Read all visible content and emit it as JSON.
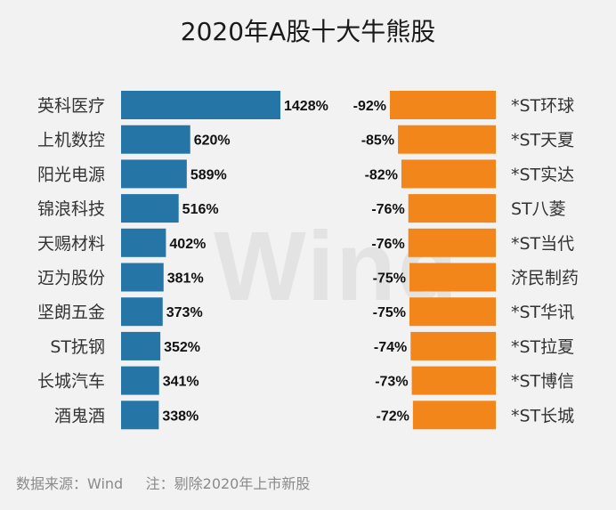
{
  "chart_data": {
    "type": "bar",
    "title": "2020年A股十大牛熊股",
    "colors": {
      "gainers": "#2576a7",
      "losers": "#f3861a"
    },
    "gainers": {
      "categories": [
        "英科医疗",
        "上机数控",
        "阳光电源",
        "锦浪科技",
        "天赐材料",
        "迈为股份",
        "坚朗五金",
        "ST抚钢",
        "长城汽车",
        "酒鬼酒"
      ],
      "values": [
        1428,
        620,
        589,
        516,
        402,
        381,
        373,
        352,
        341,
        338
      ],
      "labels": [
        "1428%",
        "620%",
        "589%",
        "516%",
        "402%",
        "381%",
        "373%",
        "352%",
        "341%",
        "338%"
      ]
    },
    "losers": {
      "categories": [
        "*ST环球",
        "*ST天夏",
        "*ST实达",
        "ST八菱",
        "*ST当代",
        "济民制药",
        "*ST华讯",
        "*ST拉夏",
        "*ST博信",
        "*ST长城"
      ],
      "values": [
        -92,
        -85,
        -82,
        -76,
        -76,
        -75,
        -75,
        -74,
        -73,
        -72
      ],
      "labels": [
        "-92%",
        "-85%",
        "-82%",
        "-76%",
        "-76%",
        "-75%",
        "-75%",
        "-74%",
        "-73%",
        "-72%"
      ]
    }
  },
  "watermark": "Wind",
  "footer": "数据来源：Wind     注：剔除2020年上市新股"
}
